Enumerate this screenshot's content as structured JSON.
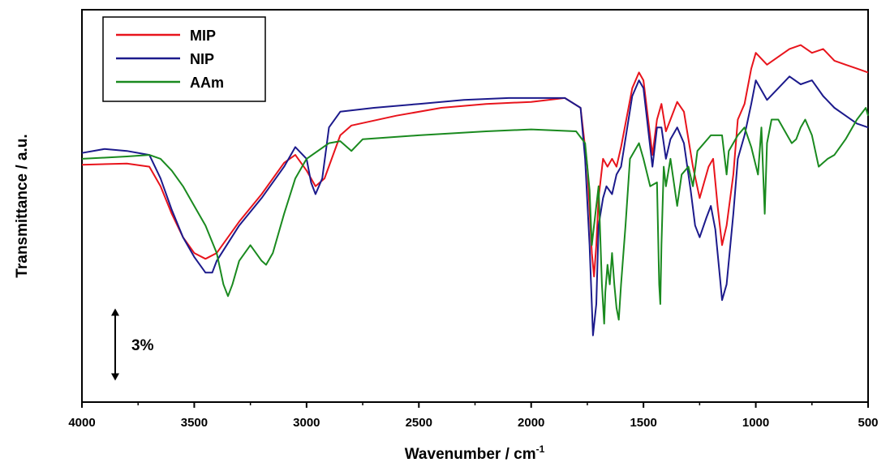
{
  "chart_data": {
    "type": "line",
    "title": "",
    "xlabel": "Wavenumber / cm",
    "xlabel_superscript": "-1",
    "ylabel": "Transmittance / a.u.",
    "xlim": [
      4000,
      500
    ],
    "x_reversed": true,
    "ylim": [
      0,
      100
    ],
    "x_ticks": [
      4000,
      3500,
      3000,
      2500,
      2000,
      1500,
      1000,
      500
    ],
    "x_tick_labels": [
      "4000",
      "3500",
      "3000",
      "2500",
      "2000",
      "1500",
      "1000",
      "500"
    ],
    "grid": false,
    "legend_position": "top-left",
    "scale_bar_label": "3%",
    "scale_bar_span": 18.4,
    "series": [
      {
        "name": "MIP",
        "color": "#e8141c",
        "points": [
          [
            4000,
            60.5
          ],
          [
            3800,
            60.8
          ],
          [
            3700,
            60
          ],
          [
            3650,
            55
          ],
          [
            3600,
            48
          ],
          [
            3550,
            42
          ],
          [
            3500,
            38
          ],
          [
            3450,
            36.5
          ],
          [
            3400,
            38
          ],
          [
            3300,
            46
          ],
          [
            3200,
            53
          ],
          [
            3100,
            61
          ],
          [
            3050,
            63
          ],
          [
            3000,
            59
          ],
          [
            2960,
            55
          ],
          [
            2920,
            57
          ],
          [
            2850,
            68
          ],
          [
            2800,
            70.5
          ],
          [
            2600,
            73
          ],
          [
            2400,
            75
          ],
          [
            2200,
            76
          ],
          [
            2000,
            76.5
          ],
          [
            1850,
            77.5
          ],
          [
            1780,
            75
          ],
          [
            1750,
            60
          ],
          [
            1730,
            38
          ],
          [
            1720,
            32
          ],
          [
            1710,
            40
          ],
          [
            1700,
            52
          ],
          [
            1680,
            62
          ],
          [
            1660,
            60
          ],
          [
            1640,
            62
          ],
          [
            1620,
            60
          ],
          [
            1600,
            65
          ],
          [
            1550,
            80
          ],
          [
            1520,
            84
          ],
          [
            1500,
            82
          ],
          [
            1460,
            63
          ],
          [
            1440,
            72
          ],
          [
            1420,
            76
          ],
          [
            1400,
            69
          ],
          [
            1380,
            72
          ],
          [
            1350,
            76.5
          ],
          [
            1320,
            74
          ],
          [
            1280,
            60
          ],
          [
            1250,
            52
          ],
          [
            1210,
            60
          ],
          [
            1190,
            62
          ],
          [
            1170,
            50
          ],
          [
            1150,
            40
          ],
          [
            1130,
            45
          ],
          [
            1100,
            58
          ],
          [
            1080,
            72
          ],
          [
            1050,
            76
          ],
          [
            1020,
            85
          ],
          [
            1000,
            89
          ],
          [
            950,
            86
          ],
          [
            900,
            88
          ],
          [
            850,
            90
          ],
          [
            800,
            91
          ],
          [
            750,
            89
          ],
          [
            700,
            90
          ],
          [
            650,
            87
          ],
          [
            600,
            86
          ],
          [
            550,
            85
          ],
          [
            500,
            84
          ]
        ]
      },
      {
        "name": "NIP",
        "color": "#1c1a8c",
        "points": [
          [
            4000,
            63.5
          ],
          [
            3900,
            64.5
          ],
          [
            3800,
            64
          ],
          [
            3700,
            63
          ],
          [
            3650,
            57
          ],
          [
            3600,
            49
          ],
          [
            3550,
            42
          ],
          [
            3500,
            37
          ],
          [
            3450,
            33
          ],
          [
            3420,
            33
          ],
          [
            3400,
            36
          ],
          [
            3300,
            45
          ],
          [
            3200,
            52
          ],
          [
            3100,
            60
          ],
          [
            3050,
            65
          ],
          [
            3000,
            62
          ],
          [
            2980,
            56
          ],
          [
            2960,
            53
          ],
          [
            2930,
            57
          ],
          [
            2900,
            70
          ],
          [
            2850,
            74
          ],
          [
            2700,
            75
          ],
          [
            2500,
            76
          ],
          [
            2300,
            77
          ],
          [
            2100,
            77.5
          ],
          [
            2000,
            77.5
          ],
          [
            1850,
            77.5
          ],
          [
            1780,
            75
          ],
          [
            1760,
            62
          ],
          [
            1740,
            40
          ],
          [
            1725,
            17
          ],
          [
            1710,
            25
          ],
          [
            1700,
            45
          ],
          [
            1680,
            52
          ],
          [
            1665,
            55
          ],
          [
            1640,
            53
          ],
          [
            1620,
            58
          ],
          [
            1600,
            60
          ],
          [
            1550,
            78
          ],
          [
            1520,
            82
          ],
          [
            1500,
            80
          ],
          [
            1460,
            60
          ],
          [
            1440,
            70
          ],
          [
            1420,
            70
          ],
          [
            1400,
            62
          ],
          [
            1380,
            67
          ],
          [
            1350,
            70
          ],
          [
            1320,
            66
          ],
          [
            1290,
            54
          ],
          [
            1270,
            45
          ],
          [
            1250,
            42
          ],
          [
            1220,
            47
          ],
          [
            1200,
            50
          ],
          [
            1180,
            44
          ],
          [
            1160,
            32
          ],
          [
            1150,
            26
          ],
          [
            1130,
            30
          ],
          [
            1100,
            48
          ],
          [
            1080,
            62
          ],
          [
            1050,
            68
          ],
          [
            1020,
            76
          ],
          [
            1000,
            82
          ],
          [
            950,
            77
          ],
          [
            900,
            80
          ],
          [
            850,
            83
          ],
          [
            800,
            81
          ],
          [
            750,
            82
          ],
          [
            700,
            78
          ],
          [
            650,
            75
          ],
          [
            600,
            73
          ],
          [
            550,
            71
          ],
          [
            500,
            70
          ]
        ]
      },
      {
        "name": "AAm",
        "color": "#1a8a1f",
        "points": [
          [
            4000,
            62
          ],
          [
            3900,
            62.3
          ],
          [
            3800,
            62.6
          ],
          [
            3700,
            63
          ],
          [
            3650,
            62
          ],
          [
            3600,
            59
          ],
          [
            3550,
            55
          ],
          [
            3500,
            50
          ],
          [
            3450,
            45
          ],
          [
            3400,
            38
          ],
          [
            3370,
            30
          ],
          [
            3350,
            27
          ],
          [
            3330,
            30
          ],
          [
            3300,
            36
          ],
          [
            3250,
            40
          ],
          [
            3200,
            36
          ],
          [
            3180,
            35
          ],
          [
            3150,
            38
          ],
          [
            3100,
            48
          ],
          [
            3050,
            57
          ],
          [
            3000,
            62
          ],
          [
            2900,
            66
          ],
          [
            2850,
            66.5
          ],
          [
            2800,
            64
          ],
          [
            2750,
            67
          ],
          [
            2500,
            68
          ],
          [
            2200,
            69
          ],
          [
            2000,
            69.5
          ],
          [
            1800,
            69
          ],
          [
            1760,
            66
          ],
          [
            1740,
            54
          ],
          [
            1730,
            40
          ],
          [
            1720,
            45
          ],
          [
            1700,
            55
          ],
          [
            1685,
            30
          ],
          [
            1675,
            20
          ],
          [
            1670,
            28
          ],
          [
            1660,
            35
          ],
          [
            1650,
            30
          ],
          [
            1640,
            38
          ],
          [
            1630,
            30
          ],
          [
            1620,
            24
          ],
          [
            1610,
            21
          ],
          [
            1600,
            30
          ],
          [
            1580,
            45
          ],
          [
            1560,
            62
          ],
          [
            1520,
            66
          ],
          [
            1500,
            62
          ],
          [
            1470,
            55
          ],
          [
            1440,
            56
          ],
          [
            1430,
            30
          ],
          [
            1425,
            25
          ],
          [
            1420,
            40
          ],
          [
            1410,
            60
          ],
          [
            1400,
            55
          ],
          [
            1380,
            62
          ],
          [
            1350,
            50
          ],
          [
            1330,
            58
          ],
          [
            1300,
            60
          ],
          [
            1280,
            55
          ],
          [
            1260,
            64
          ],
          [
            1200,
            68
          ],
          [
            1150,
            68
          ],
          [
            1130,
            58
          ],
          [
            1120,
            64
          ],
          [
            1080,
            68
          ],
          [
            1050,
            70
          ],
          [
            1020,
            65
          ],
          [
            990,
            58
          ],
          [
            975,
            70
          ],
          [
            960,
            48
          ],
          [
            950,
            66
          ],
          [
            930,
            72
          ],
          [
            900,
            72
          ],
          [
            860,
            68
          ],
          [
            840,
            66
          ],
          [
            820,
            67
          ],
          [
            800,
            70
          ],
          [
            780,
            72
          ],
          [
            750,
            68
          ],
          [
            720,
            60
          ],
          [
            700,
            61
          ],
          [
            680,
            62
          ],
          [
            650,
            63
          ],
          [
            600,
            67
          ],
          [
            550,
            72
          ],
          [
            510,
            75
          ],
          [
            500,
            73
          ]
        ]
      }
    ]
  }
}
